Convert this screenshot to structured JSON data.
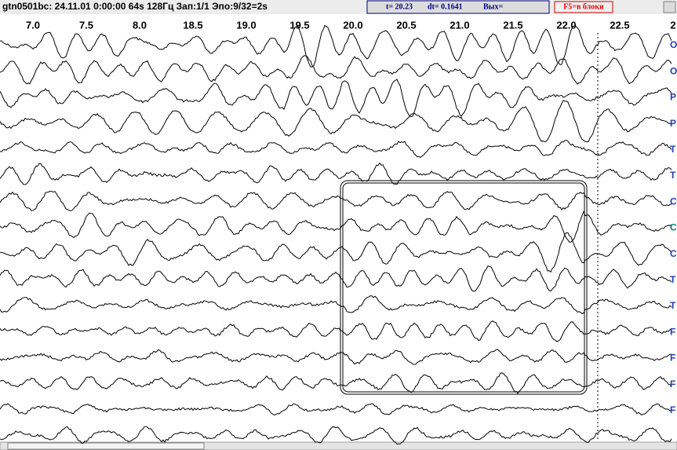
{
  "title_bar": {
    "text": "gtn0501bc: 24.11.01 0:00:00 64s 128Гц Зап:1/1 Эпо:9/32=2s",
    "t": "t= 20.23",
    "dt": "dt= 0.1641",
    "out": "Вых=",
    "button": "F5=в блоки"
  },
  "time_axis": {
    "labels": [
      "7.0",
      "7.5",
      "8.0",
      "18.5",
      "19.0",
      "19.5",
      "20.0",
      "20.5",
      "21.0",
      "21.5",
      "22.0",
      "22.5",
      "2"
    ]
  },
  "channels": {
    "labels": [
      "O",
      "O",
      "P",
      "P",
      "T",
      "T",
      "C",
      "C",
      "C",
      "T",
      "T",
      "F",
      "F",
      "F",
      "F"
    ]
  }
}
